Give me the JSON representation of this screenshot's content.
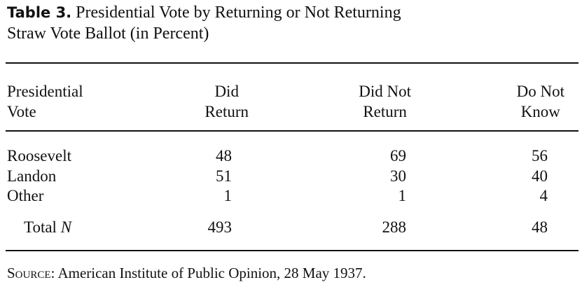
{
  "table": {
    "label": "Table 3.",
    "title_line1": "Presidential Vote by Returning or Not Returning",
    "title_line2": "Straw Vote Ballot (in Percent)",
    "headers": [
      {
        "line1": "Presidential",
        "line2": "Vote"
      },
      {
        "line1": "Did",
        "line2": "Return"
      },
      {
        "line1": "Did Not",
        "line2": "Return"
      },
      {
        "line1": "Do Not",
        "line2": "Know"
      }
    ],
    "rows": [
      {
        "label": "Roosevelt",
        "values": [
          "48",
          "69",
          "56"
        ]
      },
      {
        "label": "Landon",
        "values": [
          "51",
          "30",
          "40"
        ]
      },
      {
        "label": "Other",
        "values": [
          "1",
          "1",
          "4"
        ]
      }
    ],
    "total": {
      "label_prefix": "Total ",
      "label_italic": "N",
      "values": [
        "493",
        "288",
        "48"
      ]
    },
    "source": {
      "label": "Source:",
      "text": " American Institute of Public Opinion, 28 May 1937."
    }
  }
}
